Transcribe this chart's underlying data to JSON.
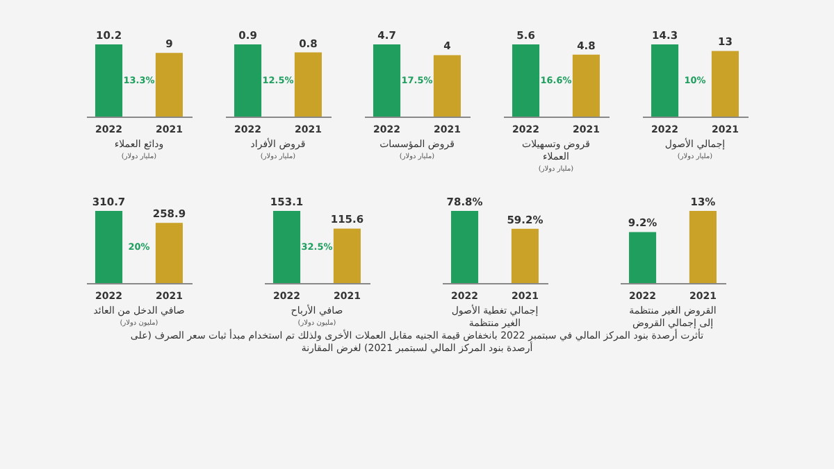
{
  "chart_data": [
    {
      "type": "bar",
      "title": "ودائع العملاء",
      "subtitle": "(مليار دولار)",
      "categories": [
        "2022",
        "2021"
      ],
      "values": [
        10.2,
        9
      ],
      "colors": [
        "#1f9e5e",
        "#c9a227"
      ],
      "data_labels": true,
      "annotations": [
        "13.3%"
      ]
    },
    {
      "type": "bar",
      "title": "قروض الأفراد",
      "subtitle": "(مليار دولار)",
      "categories": [
        "2022",
        "2021"
      ],
      "values": [
        0.9,
        0.8
      ],
      "colors": [
        "#1f9e5e",
        "#c9a227"
      ],
      "data_labels": true,
      "annotations": [
        "12.5%"
      ]
    },
    {
      "type": "bar",
      "title": "قروض المؤسسات",
      "subtitle": "(مليار دولار)",
      "categories": [
        "2022",
        "2021"
      ],
      "values": [
        4.7,
        4
      ],
      "colors": [
        "#1f9e5e",
        "#c9a227"
      ],
      "data_labels": true,
      "annotations": [
        "17.5%"
      ]
    },
    {
      "type": "bar",
      "title": "قروض وتسهيلات العملاء",
      "subtitle": "(مليار دولار)",
      "categories": [
        "2022",
        "2021"
      ],
      "values": [
        5.6,
        4.8
      ],
      "colors": [
        "#1f9e5e",
        "#c9a227"
      ],
      "data_labels": true,
      "annotations": [
        "16.6%"
      ]
    },
    {
      "type": "bar",
      "title": "إجمالي الأصول",
      "subtitle": "(مليار دولار)",
      "categories": [
        "2022",
        "2021"
      ],
      "values": [
        14.3,
        13
      ],
      "colors": [
        "#1f9e5e",
        "#c9a227"
      ],
      "data_labels": true,
      "annotations": [
        "10%"
      ]
    },
    {
      "type": "bar",
      "title": "صافي الدخل من العائد",
      "subtitle": "(مليون دولار)",
      "categories": [
        "2022",
        "2021"
      ],
      "values": [
        310.7,
        258.9
      ],
      "colors": [
        "#1f9e5e",
        "#c9a227"
      ],
      "data_labels": true,
      "annotations": [
        "20%"
      ]
    },
    {
      "type": "bar",
      "title": "صافي الأرباح",
      "subtitle": "(مليون دولار)",
      "categories": [
        "2022",
        "2021"
      ],
      "values": [
        153.1,
        115.6
      ],
      "colors": [
        "#1f9e5e",
        "#c9a227"
      ],
      "data_labels": true,
      "annotations": [
        "32.5%"
      ]
    },
    {
      "type": "bar",
      "title": "إجمالي تغطية الأصول الغير منتظمة",
      "categories": [
        "2022",
        "2021"
      ],
      "values": [
        78.8,
        59.2
      ],
      "colors": [
        "#1f9e5e",
        "#c9a227"
      ],
      "value_labels": [
        "78.8%",
        "59.2%"
      ]
    },
    {
      "type": "bar",
      "title": "القروض الغير منتظمة إلى إجمالي القروض",
      "categories": [
        "2022",
        "2021"
      ],
      "values": [
        9.2,
        13
      ],
      "colors": [
        "#1f9e5e",
        "#c9a227"
      ],
      "value_labels": [
        "9.2%",
        "13%"
      ],
      "annotations": [
        "تأثرت أرصدة بنود المركز المالي في سبتمبر 2022 بانخفاض قيمة الجنيه مقابل العملات الأخرى ولذلك تم استخدام مبدأ ثبات سعر الصرف (على أرصدة بنود المركز المالي لسبتمبر 2021) لغرض المقارنة"
      ]
    }
  ]
}
